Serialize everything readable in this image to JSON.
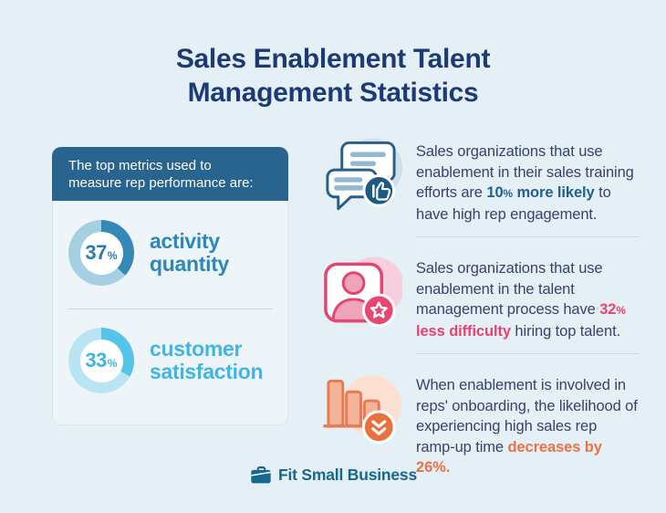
{
  "page": {
    "background_color": "#e5eff6",
    "title_line1": "Sales Enablement Talent",
    "title_line2": "Management Statistics",
    "title_color": "#1c3a75"
  },
  "left_panel": {
    "header_line1": "The top metrics used to",
    "header_line2": "measure rep performance are:",
    "header_bg_color": "#28648e"
  },
  "chart_data": {
    "type": "pie",
    "subtype": "donut",
    "title": "The top metrics used to measure rep performance are:",
    "categories": [
      "activity quantity",
      "customer satisfaction"
    ],
    "values": [
      37,
      33
    ],
    "unit": "%",
    "legend_position": "right-of-each-donut",
    "donuts": [
      {
        "label": "activity quantity",
        "value": 37,
        "unit": "%",
        "segment_color": "#3489b7",
        "track_color": "#a6cfe2",
        "value_color": "#2b7cb2",
        "label_color": "#2e87ba"
      },
      {
        "label": "customer satisfaction",
        "value": 33,
        "unit": "%",
        "segment_color": "#55c3ea",
        "track_color": "#b9e4f4",
        "value_color": "#40b4e3",
        "label_color": "#41b5e5"
      }
    ]
  },
  "stats": [
    {
      "icon": "chat-thumbs-up-icon",
      "before": "Sales organizations that use enablement in their sales training efforts are ",
      "highlight": "10% more likely",
      "after": " to have high rep engagement.",
      "highlight_color": "#21618f"
    },
    {
      "icon": "person-star-icon",
      "before": "Sales organizations that use enablement in the talent management process have ",
      "highlight": "32% less difficulty",
      "after": " hiring top talent.",
      "highlight_color": "#e8436e"
    },
    {
      "icon": "bar-chart-decline-icon",
      "before": "When enablement is involved in reps' onboarding, the likelihood of experiencing high sales rep ramp-up time ",
      "highlight": "decreases by 26%.",
      "after": "",
      "highlight_color": "#ec7144"
    }
  ],
  "footer": {
    "logo_text": "Fit Small Business",
    "logo_color": "#15698e"
  }
}
